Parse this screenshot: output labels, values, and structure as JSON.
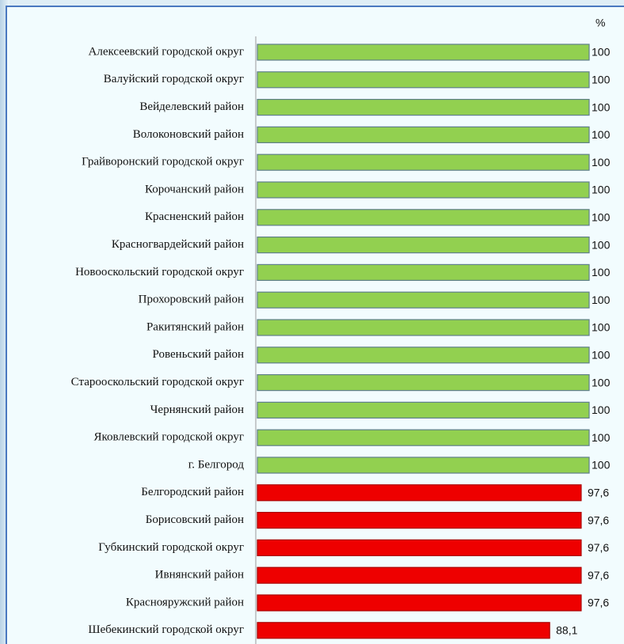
{
  "chart_data": {
    "type": "bar",
    "orientation": "horizontal",
    "unit": "%",
    "categories": [
      "Алексеевский городской округ",
      "Валуйский городской округ",
      "Вейделевский район",
      "Волоконовский район",
      "Грайворонский городской округ",
      "Корочанский район",
      "Красненский район",
      "Красногвардейский район",
      "Новооскольский городской округ",
      "Прохоровский район",
      "Ракитянский район",
      "Ровеньский район",
      "Старооскольский городской округ",
      "Чернянский район",
      "Яковлевский городской округ",
      "г. Белгород",
      "Белгородский район",
      "Борисовский район",
      "Губкинский городской округ",
      "Ивнянский район",
      "Краснояружский район",
      "Шебекинский городской округ"
    ],
    "values": [
      100,
      100,
      100,
      100,
      100,
      100,
      100,
      100,
      100,
      100,
      100,
      100,
      100,
      100,
      100,
      100,
      97.6,
      97.6,
      97.6,
      97.6,
      97.6,
      88.1
    ],
    "value_labels": [
      "100",
      "100",
      "100",
      "100",
      "100",
      "100",
      "100",
      "100",
      "100",
      "100",
      "100",
      "100",
      "100",
      "100",
      "100",
      "100",
      "97,6",
      "97,6",
      "97,6",
      "97,6",
      "97,6",
      "88,1"
    ],
    "colors": [
      "#92d050",
      "#92d050",
      "#92d050",
      "#92d050",
      "#92d050",
      "#92d050",
      "#92d050",
      "#92d050",
      "#92d050",
      "#92d050",
      "#92d050",
      "#92d050",
      "#92d050",
      "#92d050",
      "#92d050",
      "#92d050",
      "#ee0000",
      "#ee0000",
      "#ee0000",
      "#ee0000",
      "#ee0000",
      "#ee0000"
    ],
    "xlim": [
      0,
      100
    ]
  }
}
